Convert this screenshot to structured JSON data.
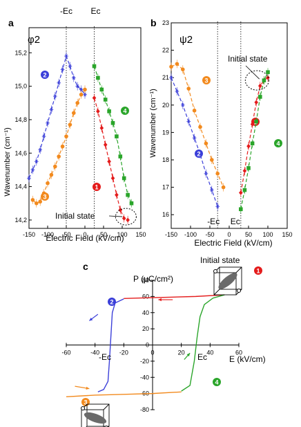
{
  "chart_data": [
    {
      "panel": "a",
      "type": "scatter",
      "title": "φ2",
      "xlabel": "Electric Field (kV/cm)",
      "ylabel": "Wavenumber (cm⁻¹)",
      "xlim": [
        -150,
        150
      ],
      "ylim": [
        14.15,
        15.35
      ],
      "xticks": [
        "-150",
        "-100",
        "-50",
        "0",
        "50",
        "100",
        "150"
      ],
      "yticks": [
        "14,2",
        "14,4",
        "14,6",
        "14,8",
        "15,0",
        "15,2"
      ],
      "marker_labels": [
        "-Ec",
        "Ec"
      ],
      "marker_x": [
        -50,
        25
      ],
      "annotation": "Initial state",
      "series": [
        {
          "badge": "1",
          "color": "#e41b1b",
          "marker": "diamond",
          "x": [
            25,
            35,
            45,
            55,
            65,
            75,
            85,
            95,
            105,
            115
          ],
          "y": [
            14.93,
            14.85,
            14.75,
            14.65,
            14.55,
            14.45,
            14.35,
            14.26,
            14.21,
            14.2
          ]
        },
        {
          "badge": "2",
          "color": "#3b3fd9",
          "marker": "star",
          "x": [
            -150,
            -140,
            -130,
            -120,
            -110,
            -100,
            -90,
            -80,
            -70,
            -60,
            -50,
            -40,
            -30,
            -20,
            -10,
            0
          ],
          "y": [
            14.45,
            14.5,
            14.55,
            14.62,
            14.7,
            14.78,
            14.86,
            14.94,
            15.02,
            15.1,
            15.18,
            15.12,
            15.05,
            15.0,
            14.98,
            14.95
          ]
        },
        {
          "badge": "3",
          "color": "#f28a1e",
          "marker": "circle",
          "x": [
            -140,
            -130,
            -120,
            -110,
            -100,
            -90,
            -80,
            -70,
            -60,
            -50,
            -40,
            -30,
            -20,
            -10,
            0
          ],
          "y": [
            14.32,
            14.3,
            14.31,
            14.36,
            14.42,
            14.47,
            14.52,
            14.58,
            14.64,
            14.7,
            14.77,
            14.84,
            14.9,
            14.95,
            14.98
          ]
        },
        {
          "badge": "4",
          "color": "#2aa52a",
          "marker": "square",
          "x": [
            25,
            35,
            45,
            55,
            65,
            75,
            85,
            95,
            105,
            115,
            125
          ],
          "y": [
            15.12,
            15.05,
            14.98,
            14.92,
            14.85,
            14.78,
            14.7,
            14.58,
            14.45,
            14.35,
            14.3
          ]
        }
      ]
    },
    {
      "panel": "b",
      "type": "scatter",
      "title": "ψ2",
      "xlabel": "Electric Field (kV/cm)",
      "ylabel": "Wavenumber (cm⁻¹)",
      "xlim": [
        -150,
        150
      ],
      "ylim": [
        15.5,
        23
      ],
      "xticks": [
        "-150",
        "-100",
        "-50",
        "0",
        "50",
        "100",
        "150"
      ],
      "yticks": [
        "16",
        "17",
        "18",
        "19",
        "20",
        "21",
        "22",
        "23"
      ],
      "marker_labels": [
        "-Ec",
        "Ec"
      ],
      "marker_x": [
        -30,
        30
      ],
      "annotation": "Initial state",
      "series": [
        {
          "badge": "1",
          "color": "#e41b1b",
          "marker": "diamond",
          "x": [
            30,
            40,
            50,
            60,
            70,
            80,
            90,
            100
          ],
          "y": [
            16.8,
            17.6,
            18.5,
            19.3,
            20.1,
            20.7,
            20.9,
            21.0
          ]
        },
        {
          "badge": "2",
          "color": "#3b3fd9",
          "marker": "star",
          "x": [
            -150,
            -135,
            -120,
            -105,
            -90,
            -75,
            -60,
            -45,
            -30
          ],
          "y": [
            21.0,
            20.5,
            20.0,
            19.4,
            18.8,
            18.2,
            17.5,
            16.9,
            16.3
          ]
        },
        {
          "badge": "3",
          "color": "#f28a1e",
          "marker": "circle",
          "x": [
            -150,
            -135,
            -120,
            -105,
            -90,
            -75,
            -60,
            -45,
            -30,
            -15
          ],
          "y": [
            21.4,
            21.5,
            21.3,
            20.6,
            19.8,
            19.2,
            18.6,
            18.0,
            17.5,
            17.0
          ]
        },
        {
          "badge": "4",
          "color": "#2aa52a",
          "marker": "square",
          "x": [
            30,
            40,
            50,
            60,
            70,
            80,
            90,
            100
          ],
          "y": [
            16.2,
            16.9,
            17.7,
            18.6,
            19.4,
            20.3,
            20.9,
            21.2
          ]
        }
      ]
    },
    {
      "panel": "c",
      "type": "line",
      "xlabel": "E (kV/cm)",
      "ylabel": "P (μC/cm²)",
      "xlim": [
        -60,
        60
      ],
      "ylim": [
        -80,
        80
      ],
      "xticks": [
        "-60",
        "-40",
        "-20",
        "0",
        "20",
        "40",
        "60"
      ],
      "yticks": [
        "-80",
        "-60",
        "-40",
        "-20",
        "0",
        "20",
        "40",
        "60",
        "80"
      ],
      "marker_labels": [
        "-Ec",
        "Ec"
      ],
      "annotation": "Initial state",
      "series": [
        {
          "badge": "1",
          "color": "#e41b1b",
          "x": [
            50,
            30,
            10,
            -10,
            -20
          ],
          "y": [
            62,
            60,
            59,
            58,
            57.5
          ]
        },
        {
          "badge": "2",
          "color": "#3b3fd9",
          "x": [
            -20,
            -26,
            -28,
            -29,
            -30,
            -31,
            -34,
            -38
          ],
          "y": [
            57,
            52,
            40,
            10,
            -20,
            -45,
            -55,
            -58
          ]
        },
        {
          "badge": "3",
          "color": "#f28a1e",
          "x": [
            -60,
            -40,
            -20,
            0,
            20
          ],
          "y": [
            -64,
            -62,
            -61,
            -60,
            -58
          ]
        },
        {
          "badge": "4",
          "color": "#2aa52a",
          "x": [
            20,
            26,
            29,
            31,
            33,
            36,
            42,
            50
          ],
          "y": [
            -57,
            -50,
            -20,
            10,
            35,
            50,
            58,
            62
          ]
        }
      ]
    }
  ]
}
